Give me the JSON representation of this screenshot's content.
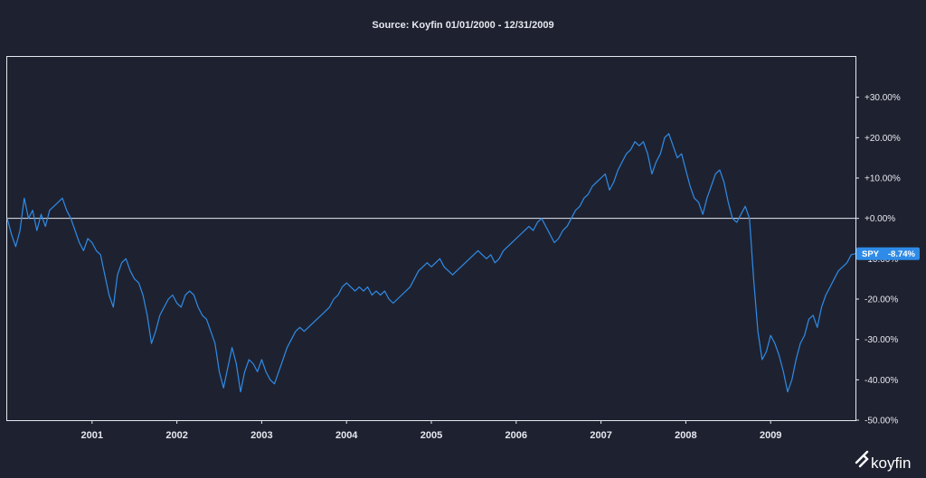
{
  "chart_data": {
    "type": "line",
    "title": "Source: Koyfin 01/01/2000 - 12/31/2009",
    "xlabel": "",
    "ylabel": "",
    "x_range": [
      2000.0,
      2010.0
    ],
    "x_ticks": [
      {
        "value": 2001,
        "label": "2001"
      },
      {
        "value": 2002,
        "label": "2002"
      },
      {
        "value": 2003,
        "label": "2003"
      },
      {
        "value": 2004,
        "label": "2004"
      },
      {
        "value": 2005,
        "label": "2005"
      },
      {
        "value": 2006,
        "label": "2006"
      },
      {
        "value": 2007,
        "label": "2007"
      },
      {
        "value": 2008,
        "label": "2008"
      },
      {
        "value": 2009,
        "label": "2009"
      }
    ],
    "ylim": [
      -50,
      40
    ],
    "y_ticks": [
      {
        "value": 30,
        "label": "+30.00%"
      },
      {
        "value": 20,
        "label": "+20.00%"
      },
      {
        "value": 10,
        "label": "+10.00%"
      },
      {
        "value": 0,
        "label": "+0.00%"
      },
      {
        "value": -10,
        "label": "-10.00%"
      },
      {
        "value": -20,
        "label": "-20.00%"
      },
      {
        "value": -30,
        "label": "-30.00%"
      },
      {
        "value": -40,
        "label": "-40.00%"
      },
      {
        "value": -50,
        "label": "-50.00%"
      }
    ],
    "reference_line": 0,
    "series": [
      {
        "name": "SPY",
        "last_value_label": "-8.74%",
        "color": "#2f8be8",
        "points": [
          [
            2000.0,
            0
          ],
          [
            2000.05,
            -4
          ],
          [
            2000.1,
            -7
          ],
          [
            2000.15,
            -3
          ],
          [
            2000.2,
            5
          ],
          [
            2000.25,
            0
          ],
          [
            2000.3,
            2
          ],
          [
            2000.35,
            -3
          ],
          [
            2000.4,
            1
          ],
          [
            2000.45,
            -2
          ],
          [
            2000.5,
            2
          ],
          [
            2000.55,
            3
          ],
          [
            2000.6,
            4
          ],
          [
            2000.65,
            5
          ],
          [
            2000.7,
            2
          ],
          [
            2000.75,
            0
          ],
          [
            2000.8,
            -3
          ],
          [
            2000.85,
            -6
          ],
          [
            2000.9,
            -8
          ],
          [
            2000.95,
            -5
          ],
          [
            2001.0,
            -6
          ],
          [
            2001.05,
            -8
          ],
          [
            2001.1,
            -9
          ],
          [
            2001.15,
            -14
          ],
          [
            2001.2,
            -19
          ],
          [
            2001.25,
            -22
          ],
          [
            2001.3,
            -14
          ],
          [
            2001.35,
            -11
          ],
          [
            2001.4,
            -10
          ],
          [
            2001.45,
            -13
          ],
          [
            2001.5,
            -15
          ],
          [
            2001.55,
            -16
          ],
          [
            2001.6,
            -19
          ],
          [
            2001.65,
            -24
          ],
          [
            2001.7,
            -31
          ],
          [
            2001.75,
            -28
          ],
          [
            2001.8,
            -24
          ],
          [
            2001.85,
            -22
          ],
          [
            2001.9,
            -20
          ],
          [
            2001.95,
            -19
          ],
          [
            2002.0,
            -21
          ],
          [
            2002.05,
            -22
          ],
          [
            2002.1,
            -19
          ],
          [
            2002.15,
            -18
          ],
          [
            2002.2,
            -19
          ],
          [
            2002.25,
            -22
          ],
          [
            2002.3,
            -24
          ],
          [
            2002.35,
            -25
          ],
          [
            2002.4,
            -28
          ],
          [
            2002.45,
            -31
          ],
          [
            2002.5,
            -38
          ],
          [
            2002.55,
            -42
          ],
          [
            2002.6,
            -37
          ],
          [
            2002.65,
            -32
          ],
          [
            2002.7,
            -36
          ],
          [
            2002.75,
            -43
          ],
          [
            2002.8,
            -38
          ],
          [
            2002.85,
            -35
          ],
          [
            2002.9,
            -36
          ],
          [
            2002.95,
            -38
          ],
          [
            2003.0,
            -35
          ],
          [
            2003.05,
            -38
          ],
          [
            2003.1,
            -40
          ],
          [
            2003.15,
            -41
          ],
          [
            2003.2,
            -38
          ],
          [
            2003.25,
            -35
          ],
          [
            2003.3,
            -32
          ],
          [
            2003.35,
            -30
          ],
          [
            2003.4,
            -28
          ],
          [
            2003.45,
            -27
          ],
          [
            2003.5,
            -28
          ],
          [
            2003.55,
            -27
          ],
          [
            2003.6,
            -26
          ],
          [
            2003.65,
            -25
          ],
          [
            2003.7,
            -24
          ],
          [
            2003.75,
            -23
          ],
          [
            2003.8,
            -22
          ],
          [
            2003.85,
            -20
          ],
          [
            2003.9,
            -19
          ],
          [
            2003.95,
            -17
          ],
          [
            2004.0,
            -16
          ],
          [
            2004.05,
            -17
          ],
          [
            2004.1,
            -18
          ],
          [
            2004.15,
            -17
          ],
          [
            2004.2,
            -18
          ],
          [
            2004.25,
            -17
          ],
          [
            2004.3,
            -19
          ],
          [
            2004.35,
            -18
          ],
          [
            2004.4,
            -19
          ],
          [
            2004.45,
            -18
          ],
          [
            2004.5,
            -20
          ],
          [
            2004.55,
            -21
          ],
          [
            2004.6,
            -20
          ],
          [
            2004.65,
            -19
          ],
          [
            2004.7,
            -18
          ],
          [
            2004.75,
            -17
          ],
          [
            2004.8,
            -15
          ],
          [
            2004.85,
            -13
          ],
          [
            2004.9,
            -12
          ],
          [
            2004.95,
            -11
          ],
          [
            2005.0,
            -12
          ],
          [
            2005.05,
            -11
          ],
          [
            2005.1,
            -10
          ],
          [
            2005.15,
            -12
          ],
          [
            2005.2,
            -13
          ],
          [
            2005.25,
            -14
          ],
          [
            2005.3,
            -13
          ],
          [
            2005.35,
            -12
          ],
          [
            2005.4,
            -11
          ],
          [
            2005.45,
            -10
          ],
          [
            2005.5,
            -9
          ],
          [
            2005.55,
            -8
          ],
          [
            2005.6,
            -9
          ],
          [
            2005.65,
            -10
          ],
          [
            2005.7,
            -9
          ],
          [
            2005.75,
            -11
          ],
          [
            2005.8,
            -10
          ],
          [
            2005.85,
            -8
          ],
          [
            2005.9,
            -7
          ],
          [
            2005.95,
            -6
          ],
          [
            2006.0,
            -5
          ],
          [
            2006.05,
            -4
          ],
          [
            2006.1,
            -3
          ],
          [
            2006.15,
            -2
          ],
          [
            2006.2,
            -3
          ],
          [
            2006.25,
            -1
          ],
          [
            2006.3,
            0
          ],
          [
            2006.35,
            -2
          ],
          [
            2006.4,
            -4
          ],
          [
            2006.45,
            -6
          ],
          [
            2006.5,
            -5
          ],
          [
            2006.55,
            -3
          ],
          [
            2006.6,
            -2
          ],
          [
            2006.65,
            0
          ],
          [
            2006.7,
            2
          ],
          [
            2006.75,
            3
          ],
          [
            2006.8,
            5
          ],
          [
            2006.85,
            6
          ],
          [
            2006.9,
            8
          ],
          [
            2006.95,
            9
          ],
          [
            2007.0,
            10
          ],
          [
            2007.05,
            11
          ],
          [
            2007.1,
            7
          ],
          [
            2007.15,
            9
          ],
          [
            2007.2,
            12
          ],
          [
            2007.25,
            14
          ],
          [
            2007.3,
            16
          ],
          [
            2007.35,
            17
          ],
          [
            2007.4,
            19
          ],
          [
            2007.45,
            18
          ],
          [
            2007.5,
            19
          ],
          [
            2007.55,
            16
          ],
          [
            2007.6,
            11
          ],
          [
            2007.65,
            14
          ],
          [
            2007.7,
            16
          ],
          [
            2007.75,
            20
          ],
          [
            2007.8,
            21
          ],
          [
            2007.85,
            18
          ],
          [
            2007.9,
            15
          ],
          [
            2007.95,
            16
          ],
          [
            2008.0,
            12
          ],
          [
            2008.05,
            8
          ],
          [
            2008.1,
            5
          ],
          [
            2008.15,
            4
          ],
          [
            2008.2,
            1
          ],
          [
            2008.25,
            5
          ],
          [
            2008.3,
            8
          ],
          [
            2008.35,
            11
          ],
          [
            2008.4,
            12
          ],
          [
            2008.45,
            9
          ],
          [
            2008.5,
            4
          ],
          [
            2008.55,
            0
          ],
          [
            2008.6,
            -1
          ],
          [
            2008.65,
            1
          ],
          [
            2008.7,
            3
          ],
          [
            2008.75,
            0
          ],
          [
            2008.8,
            -15
          ],
          [
            2008.85,
            -28
          ],
          [
            2008.9,
            -35
          ],
          [
            2008.95,
            -33
          ],
          [
            2009.0,
            -29
          ],
          [
            2009.05,
            -31
          ],
          [
            2009.1,
            -34
          ],
          [
            2009.15,
            -38
          ],
          [
            2009.2,
            -43
          ],
          [
            2009.25,
            -40
          ],
          [
            2009.3,
            -35
          ],
          [
            2009.35,
            -31
          ],
          [
            2009.4,
            -29
          ],
          [
            2009.45,
            -25
          ],
          [
            2009.5,
            -24
          ],
          [
            2009.55,
            -27
          ],
          [
            2009.6,
            -22
          ],
          [
            2009.65,
            -19
          ],
          [
            2009.7,
            -17
          ],
          [
            2009.75,
            -15
          ],
          [
            2009.8,
            -13
          ],
          [
            2009.85,
            -12
          ],
          [
            2009.9,
            -11
          ],
          [
            2009.95,
            -9
          ],
          [
            2010.0,
            -8.74
          ]
        ]
      }
    ]
  },
  "branding": {
    "logo_text": "koyfin"
  }
}
